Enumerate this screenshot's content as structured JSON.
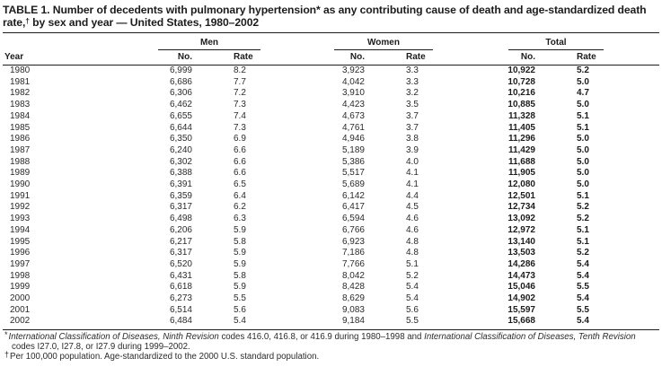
{
  "table": {
    "title": {
      "part1": "TABLE 1. Number of decedents with pulmonary hypertension* as any contributing cause of death and age-standardized death rate,",
      "dagger": "†",
      "part2": " by sex and year — United States, 1980–2002"
    },
    "columns": {
      "year": "Year",
      "no": "No.",
      "rate": "Rate"
    },
    "groups": [
      {
        "label": "Men"
      },
      {
        "label": "Women"
      },
      {
        "label": "Total"
      }
    ],
    "rows": [
      {
        "year": "1980",
        "men_no": "6,999",
        "men_rate": "8.2",
        "women_no": "3,923",
        "women_rate": "3.3",
        "total_no": "10,922",
        "total_rate": "5.2"
      },
      {
        "year": "1981",
        "men_no": "6,686",
        "men_rate": "7.7",
        "women_no": "4,042",
        "women_rate": "3.3",
        "total_no": "10,728",
        "total_rate": "5.0"
      },
      {
        "year": "1982",
        "men_no": "6,306",
        "men_rate": "7.2",
        "women_no": "3,910",
        "women_rate": "3.2",
        "total_no": "10,216",
        "total_rate": "4.7"
      },
      {
        "year": "1983",
        "men_no": "6,462",
        "men_rate": "7.3",
        "women_no": "4,423",
        "women_rate": "3.5",
        "total_no": "10,885",
        "total_rate": "5.0"
      },
      {
        "year": "1984",
        "men_no": "6,655",
        "men_rate": "7.4",
        "women_no": "4,673",
        "women_rate": "3.7",
        "total_no": "11,328",
        "total_rate": "5.1"
      },
      {
        "year": "1985",
        "men_no": "6,644",
        "men_rate": "7.3",
        "women_no": "4,761",
        "women_rate": "3.7",
        "total_no": "11,405",
        "total_rate": "5.1"
      },
      {
        "year": "1986",
        "men_no": "6,350",
        "men_rate": "6.9",
        "women_no": "4,946",
        "women_rate": "3.8",
        "total_no": "11,296",
        "total_rate": "5.0"
      },
      {
        "year": "1987",
        "men_no": "6,240",
        "men_rate": "6.6",
        "women_no": "5,189",
        "women_rate": "3.9",
        "total_no": "11,429",
        "total_rate": "5.0"
      },
      {
        "year": "1988",
        "men_no": "6,302",
        "men_rate": "6.6",
        "women_no": "5,386",
        "women_rate": "4.0",
        "total_no": "11,688",
        "total_rate": "5.0"
      },
      {
        "year": "1989",
        "men_no": "6,388",
        "men_rate": "6.6",
        "women_no": "5,517",
        "women_rate": "4.1",
        "total_no": "11,905",
        "total_rate": "5.0"
      },
      {
        "year": "1990",
        "men_no": "6,391",
        "men_rate": "6.5",
        "women_no": "5,689",
        "women_rate": "4.1",
        "total_no": "12,080",
        "total_rate": "5.0"
      },
      {
        "year": "1991",
        "men_no": "6,359",
        "men_rate": "6.4",
        "women_no": "6,142",
        "women_rate": "4.4",
        "total_no": "12,501",
        "total_rate": "5.1"
      },
      {
        "year": "1992",
        "men_no": "6,317",
        "men_rate": "6.2",
        "women_no": "6,417",
        "women_rate": "4.5",
        "total_no": "12,734",
        "total_rate": "5.2"
      },
      {
        "year": "1993",
        "men_no": "6,498",
        "men_rate": "6.3",
        "women_no": "6,594",
        "women_rate": "4.6",
        "total_no": "13,092",
        "total_rate": "5.2"
      },
      {
        "year": "1994",
        "men_no": "6,206",
        "men_rate": "5.9",
        "women_no": "6,766",
        "women_rate": "4.6",
        "total_no": "12,972",
        "total_rate": "5.1"
      },
      {
        "year": "1995",
        "men_no": "6,217",
        "men_rate": "5.8",
        "women_no": "6,923",
        "women_rate": "4.8",
        "total_no": "13,140",
        "total_rate": "5.1"
      },
      {
        "year": "1996",
        "men_no": "6,317",
        "men_rate": "5.9",
        "women_no": "7,186",
        "women_rate": "4.8",
        "total_no": "13,503",
        "total_rate": "5.2"
      },
      {
        "year": "1997",
        "men_no": "6,520",
        "men_rate": "5.9",
        "women_no": "7,766",
        "women_rate": "5.1",
        "total_no": "14,286",
        "total_rate": "5.4"
      },
      {
        "year": "1998",
        "men_no": "6,431",
        "men_rate": "5.8",
        "women_no": "8,042",
        "women_rate": "5.2",
        "total_no": "14,473",
        "total_rate": "5.4"
      },
      {
        "year": "1999",
        "men_no": "6,618",
        "men_rate": "5.9",
        "women_no": "8,428",
        "women_rate": "5.4",
        "total_no": "15,046",
        "total_rate": "5.5"
      },
      {
        "year": "2000",
        "men_no": "6,273",
        "men_rate": "5.5",
        "women_no": "8,629",
        "women_rate": "5.4",
        "total_no": "14,902",
        "total_rate": "5.4"
      },
      {
        "year": "2001",
        "men_no": "6,514",
        "men_rate": "5.6",
        "women_no": "9,083",
        "women_rate": "5.6",
        "total_no": "15,597",
        "total_rate": "5.5"
      },
      {
        "year": "2002",
        "men_no": "6,484",
        "men_rate": "5.4",
        "women_no": "9,184",
        "women_rate": "5.5",
        "total_no": "15,668",
        "total_rate": "5.4"
      }
    ],
    "footnotes": {
      "fn1": {
        "marker": "*",
        "italic1": "International Classification of Diseases, Ninth Revision",
        "text1": " codes 416.0, 416.8, or 416.9 during 1980–1998 and ",
        "italic2": "International Classification of Diseases, Tenth Revision",
        "text2": " codes I27.0, I27.8, or I27.9 during 1999–2002."
      },
      "fn2": {
        "marker": "†",
        "text": "Per 100,000 population. Age-standardized to the 2000 U.S. standard population."
      }
    }
  }
}
